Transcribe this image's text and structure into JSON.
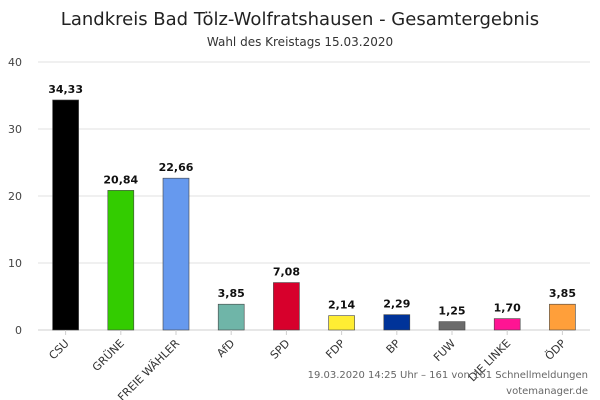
{
  "chart_data": {
    "type": "bar",
    "title": "Landkreis Bad Tölz-Wolfratshausen - Gesamtergebnis",
    "subtitle": "Wahl des Kreistags 15.03.2020",
    "categories": [
      "CSU",
      "GRÜNE",
      "FREIE WÄHLER",
      "AfD",
      "SPD",
      "FDP",
      "BP",
      "FUW",
      "DIE LINKE",
      "ÖDP"
    ],
    "values": [
      34.33,
      20.84,
      22.66,
      3.85,
      7.08,
      2.14,
      2.29,
      1.25,
      1.7,
      3.85
    ],
    "value_labels": [
      "34,33",
      "20,84",
      "22,66",
      "3,85",
      "7,08",
      "2,14",
      "2,29",
      "1,25",
      "1,70",
      "3,85"
    ],
    "colors": [
      "#000000",
      "#33cc00",
      "#6699ee",
      "#6fb5a8",
      "#d7002c",
      "#ffed33",
      "#003399",
      "#6b6b6b",
      "#ff1493",
      "#ff9f3a"
    ],
    "ylim": [
      0,
      40
    ],
    "yticks": [
      "0",
      "10",
      "20",
      "30",
      "40"
    ],
    "xlabel": "",
    "ylabel": "",
    "grid": true,
    "legend": "none"
  },
  "footer": {
    "status": "19.03.2020 14:25 Uhr – 161 von 161 Schnellmeldungen",
    "source": "votemanager.de"
  }
}
